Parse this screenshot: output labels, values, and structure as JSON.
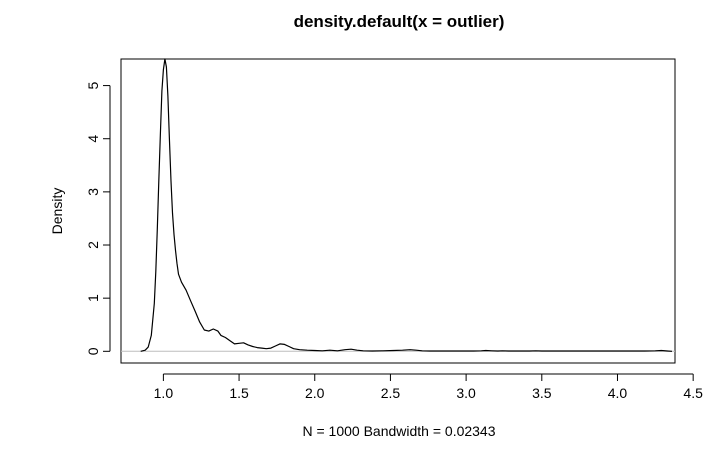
{
  "chart_data": {
    "type": "line",
    "title": "density.default(x = outlier)",
    "xlabel": "N = 1000   Bandwidth = 0.02343",
    "ylabel": "Density",
    "xlim": [
      0.72,
      4.38
    ],
    "ylim": [
      -0.22,
      5.5
    ],
    "x_ticks": [
      "1.0",
      "1.5",
      "2.0",
      "2.5",
      "3.0",
      "3.5",
      "4.0",
      "4.5"
    ],
    "y_ticks": [
      "0",
      "1",
      "2",
      "3",
      "4",
      "5"
    ],
    "baseline": 0,
    "grid": false,
    "legend": "none",
    "line_color": "#000000",
    "baseline_color": "#bebebe",
    "series": [
      {
        "x": [
          0.85,
          0.88,
          0.9,
          0.92,
          0.94,
          0.95,
          0.96,
          0.97,
          0.98,
          0.99,
          1.0,
          1.01,
          1.02,
          1.03,
          1.04,
          1.05,
          1.06,
          1.07,
          1.08,
          1.09,
          1.1,
          1.12,
          1.15,
          1.18,
          1.21,
          1.24,
          1.27,
          1.3,
          1.33,
          1.36,
          1.38,
          1.41,
          1.44,
          1.47,
          1.5,
          1.53,
          1.56,
          1.59,
          1.62,
          1.65,
          1.68,
          1.71,
          1.74,
          1.77,
          1.8,
          1.83,
          1.86,
          1.9,
          1.95,
          2.0,
          2.05,
          2.1,
          2.15,
          2.2,
          2.24,
          2.28,
          2.32,
          2.38,
          2.45,
          2.52,
          2.58,
          2.63,
          2.67,
          2.71,
          2.76,
          2.85,
          2.95,
          3.05,
          3.1,
          3.13,
          3.17,
          3.21,
          3.24,
          3.28,
          3.35,
          3.42,
          3.46,
          3.5,
          3.6,
          3.75,
          3.9,
          4.05,
          4.18,
          4.25,
          4.29,
          4.33,
          4.36
        ],
        "y": [
          0.0,
          0.02,
          0.08,
          0.3,
          0.9,
          1.5,
          2.3,
          3.2,
          4.1,
          4.9,
          5.3,
          5.5,
          5.35,
          4.8,
          4.0,
          3.2,
          2.6,
          2.2,
          1.9,
          1.65,
          1.45,
          1.3,
          1.15,
          0.95,
          0.75,
          0.55,
          0.4,
          0.38,
          0.42,
          0.38,
          0.3,
          0.26,
          0.2,
          0.14,
          0.15,
          0.16,
          0.12,
          0.09,
          0.07,
          0.06,
          0.05,
          0.06,
          0.1,
          0.14,
          0.13,
          0.09,
          0.05,
          0.03,
          0.02,
          0.015,
          0.01,
          0.02,
          0.01,
          0.03,
          0.04,
          0.02,
          0.01,
          0.005,
          0.01,
          0.015,
          0.02,
          0.03,
          0.02,
          0.01,
          0.005,
          0.005,
          0.005,
          0.005,
          0.01,
          0.015,
          0.01,
          0.005,
          0.01,
          0.005,
          0.005,
          0.005,
          0.01,
          0.005,
          0.005,
          0.005,
          0.005,
          0.005,
          0.005,
          0.01,
          0.015,
          0.005,
          0.0
        ]
      }
    ]
  }
}
